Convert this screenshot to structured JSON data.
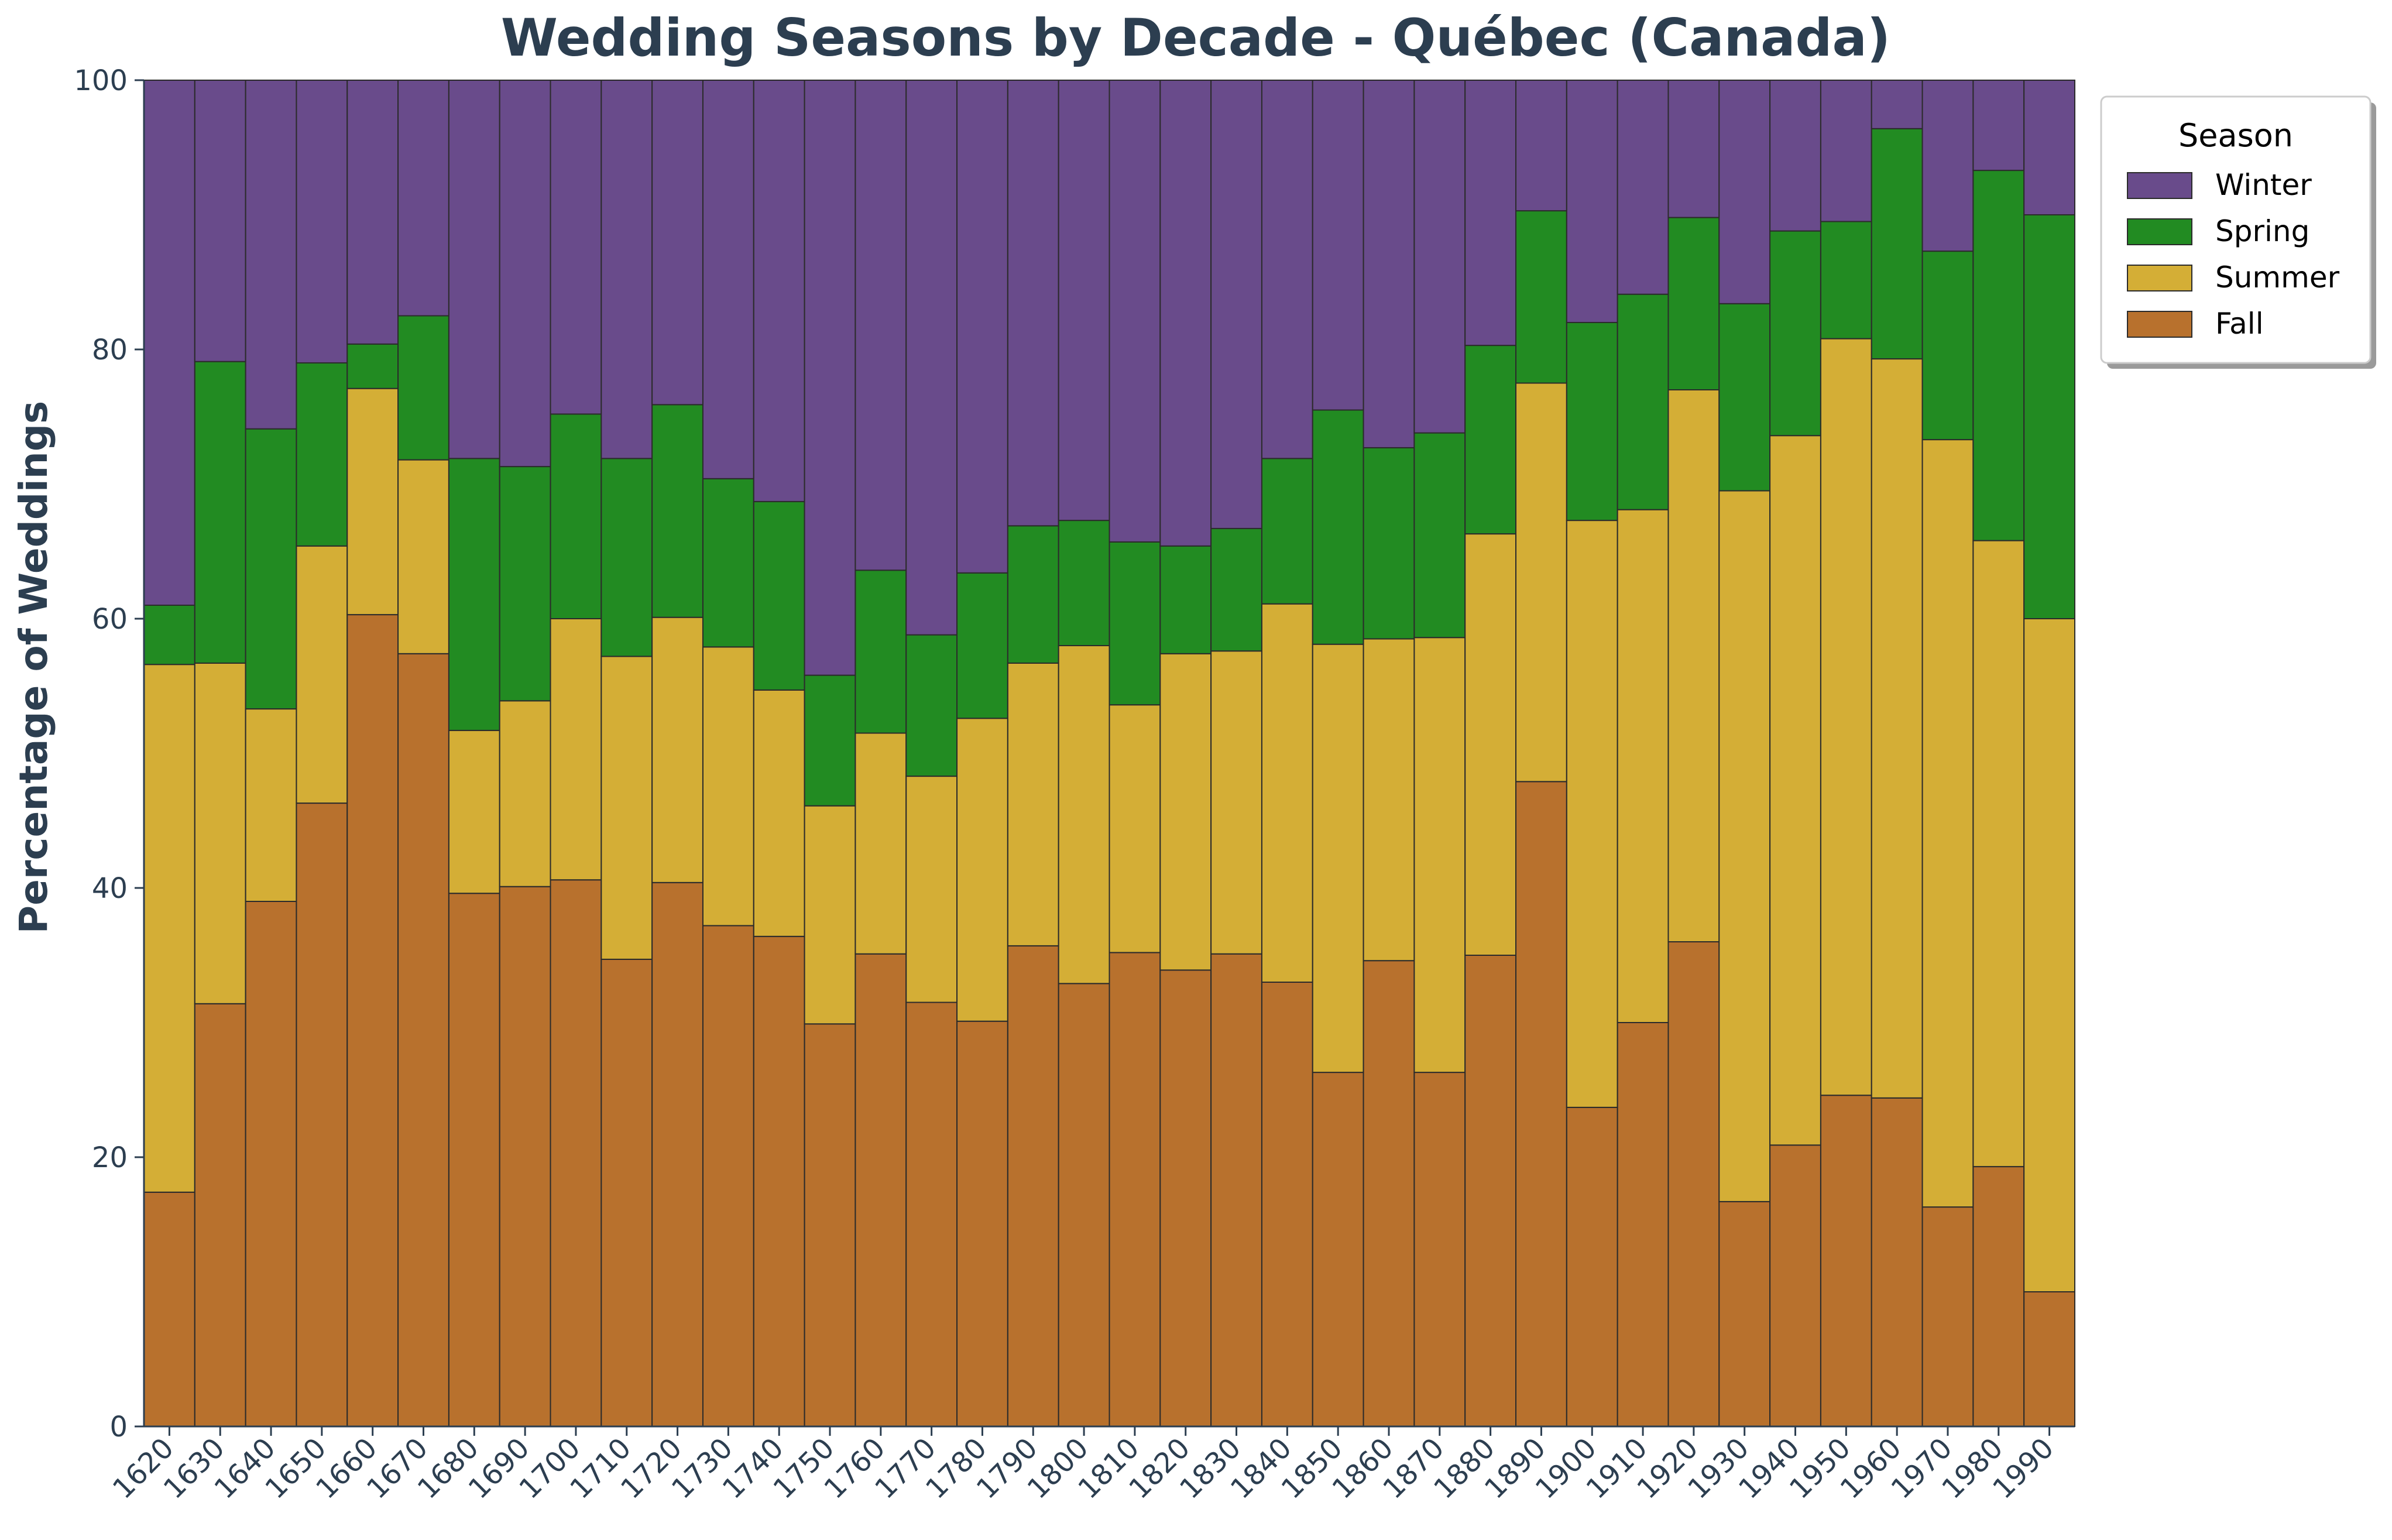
{
  "chart_data": {
    "type": "bar",
    "stacked": true,
    "title": "Wedding Seasons by Decade - Québec (Canada)",
    "xlabel": "",
    "ylabel": "Percentage of Weddings",
    "ylim": [
      0,
      100
    ],
    "yticks": [
      0,
      20,
      40,
      60,
      80,
      100
    ],
    "grid": false,
    "legend": {
      "title": "Season",
      "placement": "outside-top-right",
      "order": [
        "Winter",
        "Spring",
        "Summer",
        "Fall"
      ]
    },
    "categories": [
      "1620",
      "1630",
      "1640",
      "1650",
      "1660",
      "1670",
      "1680",
      "1690",
      "1700",
      "1710",
      "1720",
      "1730",
      "1740",
      "1750",
      "1760",
      "1770",
      "1780",
      "1790",
      "1800",
      "1810",
      "1820",
      "1830",
      "1840",
      "1850",
      "1860",
      "1870",
      "1880",
      "1890",
      "1900",
      "1910",
      "1920",
      "1930",
      "1940",
      "1950",
      "1960",
      "1970",
      "1980",
      "1990"
    ],
    "series": [
      {
        "name": "Fall",
        "color": "#b8712d",
        "values": [
          17.4,
          31.4,
          39.0,
          46.3,
          60.3,
          57.4,
          39.6,
          40.1,
          40.6,
          34.7,
          40.4,
          37.2,
          36.4,
          29.9,
          35.1,
          31.5,
          30.1,
          35.7,
          32.9,
          35.2,
          33.9,
          35.1,
          33.0,
          26.3,
          34.6,
          26.3,
          35.0,
          47.9,
          23.7,
          30.0,
          36.0,
          16.7,
          20.9,
          24.6,
          24.4,
          16.3,
          19.3,
          10.0
        ]
      },
      {
        "name": "Summer",
        "color": "#d4ae36",
        "values": [
          39.2,
          25.3,
          14.3,
          19.1,
          16.8,
          14.4,
          12.1,
          13.8,
          19.4,
          22.5,
          19.7,
          20.7,
          18.3,
          16.2,
          16.4,
          16.8,
          22.5,
          21.0,
          25.1,
          18.4,
          23.5,
          22.5,
          28.1,
          31.8,
          23.9,
          32.3,
          31.3,
          29.6,
          43.6,
          38.1,
          41.0,
          52.8,
          52.7,
          56.2,
          54.9,
          57.0,
          46.5,
          50.0
        ]
      },
      {
        "name": "Spring",
        "color": "#228b22",
        "values": [
          4.4,
          22.4,
          20.8,
          13.6,
          3.3,
          10.7,
          20.2,
          17.4,
          15.2,
          14.7,
          15.8,
          12.5,
          14.0,
          9.7,
          12.1,
          10.5,
          10.8,
          10.2,
          9.3,
          12.1,
          8.0,
          9.1,
          10.8,
          17.4,
          14.2,
          15.2,
          14.0,
          12.8,
          14.7,
          16.0,
          12.8,
          13.9,
          15.2,
          8.7,
          17.1,
          14.0,
          27.5,
          30.0
        ]
      },
      {
        "name": "Winter",
        "color": "#694b8b",
        "values": [
          39.0,
          20.9,
          25.9,
          21.0,
          19.6,
          17.5,
          28.1,
          28.7,
          24.8,
          28.1,
          24.1,
          29.6,
          31.3,
          44.2,
          36.4,
          41.2,
          36.6,
          33.1,
          32.7,
          34.3,
          34.6,
          33.3,
          28.1,
          24.5,
          27.3,
          26.2,
          19.7,
          9.7,
          18.0,
          15.9,
          10.2,
          16.6,
          11.2,
          10.5,
          3.6,
          12.7,
          6.7,
          10.0
        ]
      }
    ]
  }
}
